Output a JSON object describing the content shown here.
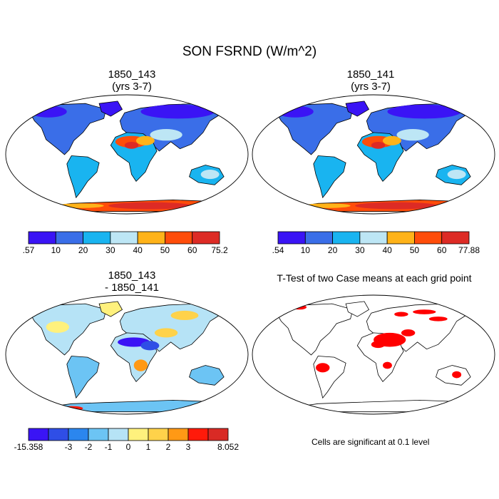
{
  "title": "SON FSRND (W/m^2)",
  "note": "Cells are significant at 0.1 level",
  "colors": {
    "ocean": "#ffffff",
    "outline": "#000000",
    "significant": "#ff0000",
    "scale_main": [
      "#3a14f5",
      "#3a6ee8",
      "#19b4f0",
      "#bde6f5",
      "#ffb319",
      "#ff4d0a",
      "#dd2b25"
    ],
    "scale_diff": [
      "#3a14f5",
      "#2f4ee6",
      "#2b86ee",
      "#6cc4f4",
      "#b6e3f6",
      "#fff17d",
      "#ffd24a",
      "#ff9915",
      "#ff1a0a",
      "#d92a25"
    ]
  },
  "chart_data": [
    {
      "type": "heatmap",
      "title": "1850_143",
      "subtitle": "(yrs 3-7)",
      "projection": "robinson",
      "colorbar": {
        "labels": [
          ".57",
          "10",
          "20",
          "30",
          "40",
          "50",
          "60",
          "75.2"
        ],
        "min": 0.57,
        "max": 75.2,
        "levels": [
          10,
          20,
          30,
          40,
          50,
          60
        ]
      }
    },
    {
      "type": "heatmap",
      "title": "1850_141",
      "subtitle": "(yrs 3-7)",
      "projection": "robinson",
      "colorbar": {
        "labels": [
          ".54",
          "10",
          "20",
          "30",
          "40",
          "50",
          "60",
          "77.88"
        ],
        "min": 0.54,
        "max": 77.88,
        "levels": [
          10,
          20,
          30,
          40,
          50,
          60
        ]
      }
    },
    {
      "type": "heatmap",
      "title": "1850_143",
      "subtitle": "- 1850_141",
      "projection": "robinson",
      "colorbar": {
        "labels": [
          "-15.358",
          "",
          "-3",
          "-2",
          "-1",
          "0",
          "1",
          "2",
          "3",
          "",
          "8.052"
        ],
        "min": -15.358,
        "max": 8.052,
        "levels": [
          -3,
          -2,
          -1,
          0,
          1,
          2,
          3
        ]
      }
    },
    {
      "type": "heatmap",
      "title": "T-Test of two Case means at each grid point",
      "projection": "robinson"
    }
  ]
}
